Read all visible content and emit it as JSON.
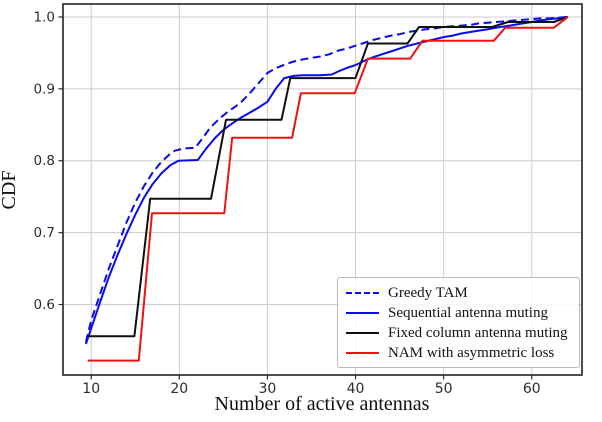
{
  "chart_data": {
    "type": "line",
    "title": "",
    "xlabel": "Number of active antennas",
    "ylabel": "CDF",
    "xlim": [
      6.8,
      65.7
    ],
    "ylim": [
      0.502,
      1.018
    ],
    "x_ticks": [
      10,
      20,
      30,
      40,
      50,
      60
    ],
    "x_tick_labels": [
      "10",
      "20",
      "30",
      "40",
      "50",
      "60"
    ],
    "y_ticks": [
      0.6,
      0.7,
      0.8,
      0.9,
      1.0
    ],
    "y_tick_labels": [
      "0.6",
      "0.7",
      "0.8",
      "0.9",
      "1.0"
    ],
    "grid": true,
    "grid_color": "#cccccc",
    "frame_color": "#3a3a3a",
    "legend_position": "lower right",
    "series": [
      {
        "name": "Greedy TAM",
        "color": "#0a0af0",
        "dash": "dashed",
        "width": 2,
        "points": [
          [
            9.4,
            0.548
          ],
          [
            10,
            0.578
          ],
          [
            11,
            0.614
          ],
          [
            12,
            0.65
          ],
          [
            13,
            0.682
          ],
          [
            14,
            0.714
          ],
          [
            15,
            0.742
          ],
          [
            16,
            0.765
          ],
          [
            17,
            0.784
          ],
          [
            18,
            0.799
          ],
          [
            19,
            0.81
          ],
          [
            19.5,
            0.814
          ],
          [
            20.5,
            0.817
          ],
          [
            21.8,
            0.818
          ],
          [
            22.5,
            0.829
          ],
          [
            23.5,
            0.846
          ],
          [
            24.5,
            0.858
          ],
          [
            25.5,
            0.868
          ],
          [
            26.9,
            0.88
          ],
          [
            28,
            0.894
          ],
          [
            29,
            0.908
          ],
          [
            30,
            0.922
          ],
          [
            31,
            0.929
          ],
          [
            32,
            0.934
          ],
          [
            33,
            0.938
          ],
          [
            34,
            0.941
          ],
          [
            35,
            0.943
          ],
          [
            36,
            0.945
          ],
          [
            37,
            0.948
          ],
          [
            38,
            0.953
          ],
          [
            39,
            0.956
          ],
          [
            40,
            0.96
          ],
          [
            41,
            0.964
          ],
          [
            42,
            0.968
          ],
          [
            43,
            0.971
          ],
          [
            44,
            0.974
          ],
          [
            45,
            0.976
          ],
          [
            46,
            0.979
          ],
          [
            47,
            0.981
          ],
          [
            48,
            0.983
          ],
          [
            49,
            0.984
          ],
          [
            50,
            0.986
          ],
          [
            51,
            0.987
          ],
          [
            52,
            0.988
          ],
          [
            53,
            0.989
          ],
          [
            54,
            0.991
          ],
          [
            55,
            0.992
          ],
          [
            56,
            0.993
          ],
          [
            57,
            0.994
          ],
          [
            58,
            0.995
          ],
          [
            59,
            0.996
          ],
          [
            60,
            0.997
          ],
          [
            61,
            0.998
          ],
          [
            62,
            0.998
          ],
          [
            63,
            0.999
          ],
          [
            64.1,
            1.0
          ]
        ]
      },
      {
        "name": "Sequential antenna muting",
        "color": "#0a0af0",
        "dash": "solid",
        "width": 2,
        "points": [
          [
            9.4,
            0.545
          ],
          [
            10,
            0.567
          ],
          [
            11,
            0.603
          ],
          [
            12,
            0.638
          ],
          [
            13,
            0.669
          ],
          [
            14,
            0.698
          ],
          [
            15,
            0.725
          ],
          [
            16,
            0.749
          ],
          [
            17,
            0.768
          ],
          [
            18,
            0.783
          ],
          [
            19,
            0.794
          ],
          [
            19.9,
            0.8
          ],
          [
            22.1,
            0.801
          ],
          [
            23,
            0.816
          ],
          [
            24,
            0.831
          ],
          [
            25,
            0.843
          ],
          [
            26,
            0.852
          ],
          [
            27,
            0.86
          ],
          [
            28,
            0.867
          ],
          [
            29,
            0.874
          ],
          [
            30,
            0.882
          ],
          [
            31,
            0.901
          ],
          [
            31.9,
            0.915
          ],
          [
            33,
            0.918
          ],
          [
            34,
            0.919
          ],
          [
            35,
            0.919
          ],
          [
            36,
            0.919
          ],
          [
            37.3,
            0.92
          ],
          [
            38,
            0.924
          ],
          [
            39,
            0.929
          ],
          [
            40,
            0.933
          ],
          [
            41,
            0.939
          ],
          [
            42,
            0.944
          ],
          [
            43,
            0.948
          ],
          [
            44,
            0.952
          ],
          [
            45,
            0.956
          ],
          [
            46,
            0.96
          ],
          [
            47,
            0.963
          ],
          [
            48,
            0.966
          ],
          [
            49,
            0.969
          ],
          [
            50,
            0.972
          ],
          [
            51,
            0.974
          ],
          [
            52,
            0.977
          ],
          [
            53,
            0.979
          ],
          [
            54,
            0.981
          ],
          [
            55,
            0.983
          ],
          [
            56,
            0.985
          ],
          [
            57,
            0.987
          ],
          [
            58,
            0.989
          ],
          [
            59,
            0.991
          ],
          [
            60,
            0.993
          ],
          [
            61,
            0.995
          ],
          [
            62,
            0.997
          ],
          [
            63,
            0.998
          ],
          [
            64.1,
            1.0
          ]
        ]
      },
      {
        "name": "Fixed column antenna muting",
        "color": "#101010",
        "dash": "solid",
        "width": 2,
        "points": [
          [
            9.6,
            0.556
          ],
          [
            14.9,
            0.556
          ],
          [
            16.7,
            0.747
          ],
          [
            23.6,
            0.747
          ],
          [
            25.3,
            0.857
          ],
          [
            31.6,
            0.857
          ],
          [
            32.6,
            0.915
          ],
          [
            40.0,
            0.915
          ],
          [
            41.4,
            0.963
          ],
          [
            45.9,
            0.963
          ],
          [
            47.2,
            0.986
          ],
          [
            55.5,
            0.986
          ],
          [
            57.3,
            0.993
          ],
          [
            62.5,
            0.993
          ],
          [
            64.1,
            1.0
          ]
        ]
      },
      {
        "name": "NAM with asymmetric loss",
        "color": "#ee1111",
        "dash": "solid",
        "width": 2,
        "points": [
          [
            9.6,
            0.522
          ],
          [
            15.4,
            0.522
          ],
          [
            16.9,
            0.727
          ],
          [
            25.1,
            0.727
          ],
          [
            26.0,
            0.832
          ],
          [
            32.8,
            0.832
          ],
          [
            33.8,
            0.894
          ],
          [
            39.9,
            0.894
          ],
          [
            41.4,
            0.942
          ],
          [
            46.2,
            0.942
          ],
          [
            47.6,
            0.967
          ],
          [
            55.7,
            0.967
          ],
          [
            57.0,
            0.985
          ],
          [
            62.5,
            0.985
          ],
          [
            64.1,
            1.0
          ]
        ]
      }
    ]
  }
}
